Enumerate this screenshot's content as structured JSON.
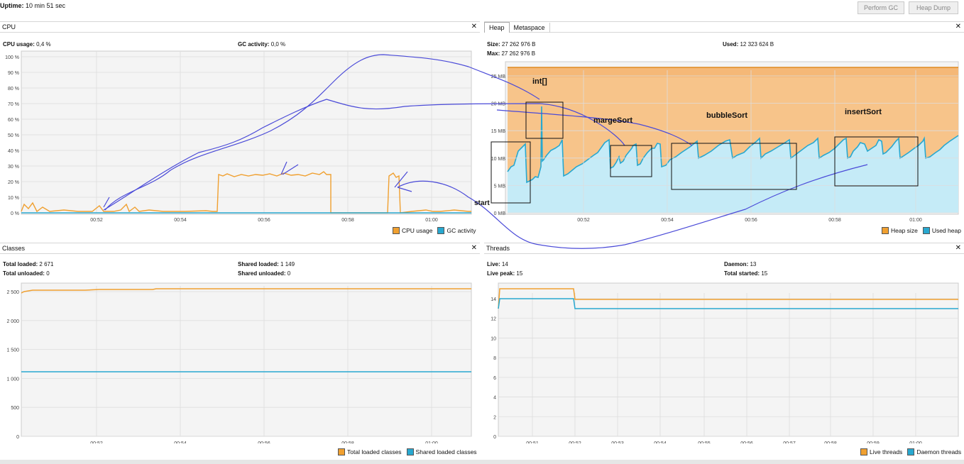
{
  "top": {
    "uptime_label": "Uptime:",
    "uptime_value": "10 min 51 sec",
    "perform_gc": "Perform GC",
    "heap_dump": "Heap Dump"
  },
  "colors": {
    "orange": "#f0a030",
    "blue": "#28a8d0",
    "annotation": "#4a4ad8"
  },
  "cpu": {
    "title": "CPU",
    "close": "✕",
    "usage_label": "CPU usage:",
    "usage_value": "0,4 %",
    "gc_label": "GC activity:",
    "gc_value": "0,0 %",
    "y_ticks": [
      "100 %",
      "90 %",
      "80 %",
      "70 %",
      "60 %",
      "50 %",
      "40 %",
      "30 %",
      "20 %",
      "10 %",
      "0 %"
    ],
    "x_ticks": [
      "00:52",
      "00:54",
      "00:56",
      "00:58",
      "01:00"
    ],
    "legend_cpu": "CPU usage",
    "legend_gc": "GC activity"
  },
  "heap": {
    "tab_heap": "Heap",
    "tab_meta": "Metaspace",
    "close": "✕",
    "size_label": "Size:",
    "size_value": "27 262 976 B",
    "max_label": "Max:",
    "max_value": "27 262 976 B",
    "used_label": "Used:",
    "used_value": "12 323 624 B",
    "y_ticks": [
      "25 MB",
      "20 MB",
      "15 MB",
      "10 MB",
      "5 MB",
      "0 MB"
    ],
    "x_ticks": [
      "00:52",
      "00:54",
      "00:56",
      "00:58",
      "01:00"
    ],
    "legend_size": "Heap size",
    "legend_used": "Used heap",
    "annotations": {
      "int": "int[]",
      "marge": "margeSort",
      "bubble": "bubbleSort",
      "insert": "insertSort",
      "start": "start"
    }
  },
  "classes": {
    "title": "Classes",
    "close": "✕",
    "total_loaded_label": "Total loaded:",
    "total_loaded_value": "2 671",
    "total_unloaded_label": "Total unloaded:",
    "total_unloaded_value": "0",
    "shared_loaded_label": "Shared loaded:",
    "shared_loaded_value": "1 149",
    "shared_unloaded_label": "Shared unloaded:",
    "shared_unloaded_value": "0",
    "y_ticks": [
      "2 500",
      "2 000",
      "1 500",
      "1 000",
      "500",
      "0"
    ],
    "x_ticks": [
      "00:52",
      "00:54",
      "00:56",
      "00:58",
      "01:00"
    ],
    "legend_total": "Total loaded classes",
    "legend_shared": "Shared loaded classes"
  },
  "threads": {
    "title": "Threads",
    "close": "✕",
    "live_label": "Live:",
    "live_value": "14",
    "peak_label": "Live peak:",
    "peak_value": "15",
    "daemon_label": "Daemon:",
    "daemon_value": "13",
    "started_label": "Total started:",
    "started_value": "15",
    "y_ticks": [
      "14",
      "12",
      "10",
      "8",
      "6",
      "4",
      "2",
      "0"
    ],
    "x_ticks": [
      "00:51",
      "00:52",
      "00:53",
      "00:54",
      "00:55",
      "00:56",
      "00:57",
      "00:58",
      "00:59",
      "01:00"
    ],
    "legend_live": "Live threads",
    "legend_daemon": "Daemon threads"
  }
}
